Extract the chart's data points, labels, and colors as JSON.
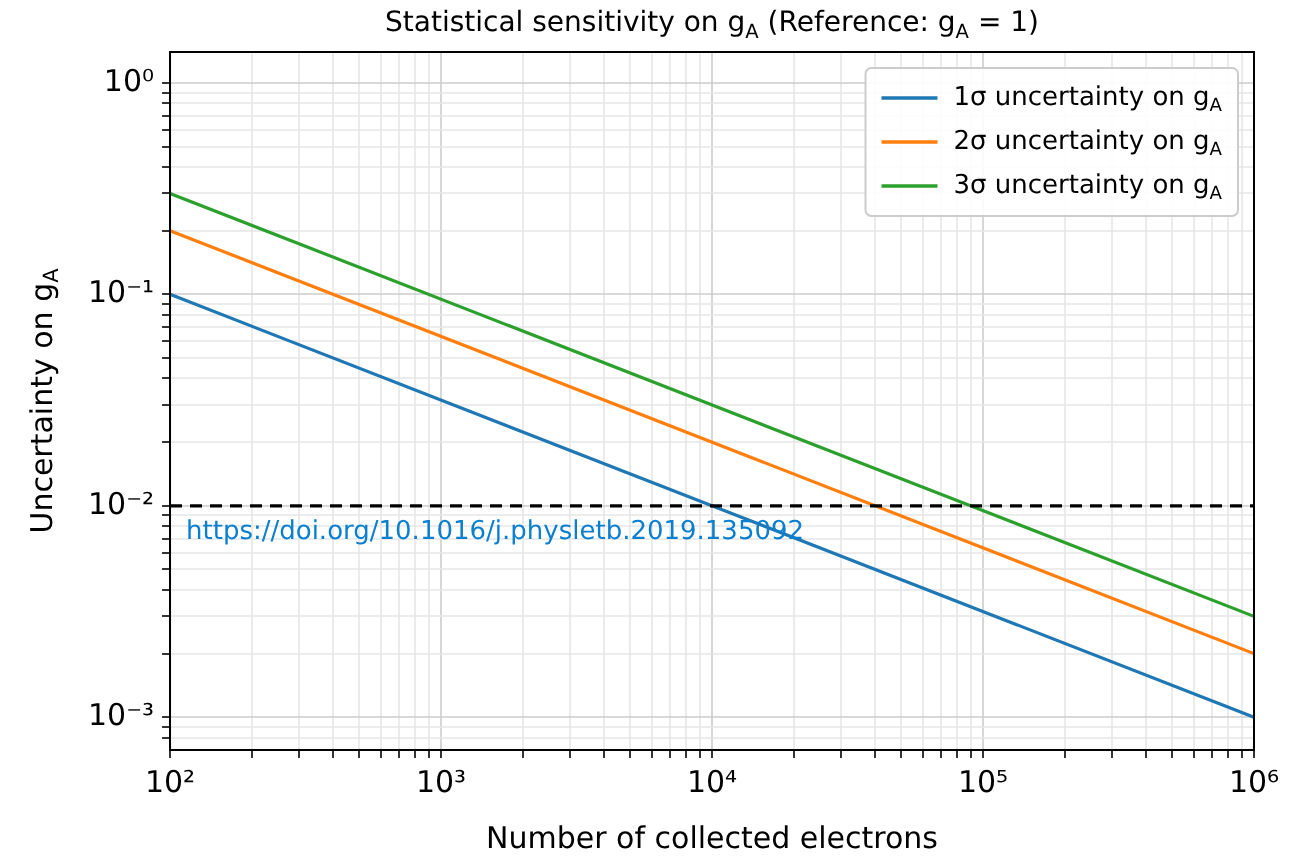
{
  "chart_data": {
    "type": "line",
    "title": "Statistical sensitivity on g$_{A}$ (Reference: g$_{A}$ = 1)",
    "xlabel": "Number of collected electrons",
    "ylabel": "Uncertainty on g$_{A}$",
    "log": "xy",
    "grid": true,
    "legend": "top right",
    "marker": "none",
    "line_style": "solid",
    "x": [
      100,
      1000000
    ],
    "series": [
      {
        "name": "1σ uncertainty on g$_{A}$",
        "color": "#1f77b4",
        "values": [
          0.1,
          0.001
        ]
      },
      {
        "name": "2σ uncertainty on g$_{A}$",
        "color": "#ff7f0e",
        "values": [
          0.2,
          0.002
        ]
      },
      {
        "name": "3σ uncertainty on g$_{A}$",
        "color": "#2ca02c",
        "values": [
          0.3,
          0.003
        ]
      }
    ],
    "xlim": [
      100,
      1000000
    ],
    "xticks": [
      {
        "value": 100,
        "label": "10²"
      },
      {
        "value": 200,
        "label": null
      },
      {
        "value": 300,
        "label": null
      },
      {
        "value": 400,
        "label": null
      },
      {
        "value": 500,
        "label": null
      },
      {
        "value": 600,
        "label": null
      },
      {
        "value": 700,
        "label": null
      },
      {
        "value": 800,
        "label": null
      },
      {
        "value": 900,
        "label": null
      },
      {
        "value": 1000,
        "label": "10³"
      },
      {
        "value": 2000,
        "label": null
      },
      {
        "value": 3000,
        "label": null
      },
      {
        "value": 4000,
        "label": null
      },
      {
        "value": 5000,
        "label": null
      },
      {
        "value": 6000,
        "label": null
      },
      {
        "value": 7000,
        "label": null
      },
      {
        "value": 8000,
        "label": null
      },
      {
        "value": 9000,
        "label": null
      },
      {
        "value": 10000,
        "label": "10⁴"
      },
      {
        "value": 20000,
        "label": null
      },
      {
        "value": 30000,
        "label": null
      },
      {
        "value": 40000,
        "label": null
      },
      {
        "value": 50000,
        "label": null
      },
      {
        "value": 60000,
        "label": null
      },
      {
        "value": 70000,
        "label": null
      },
      {
        "value": 80000,
        "label": null
      },
      {
        "value": 90000,
        "label": null
      },
      {
        "value": 100000,
        "label": "10⁵"
      },
      {
        "value": 200000,
        "label": null
      },
      {
        "value": 300000,
        "label": null
      },
      {
        "value": 400000,
        "label": null
      },
      {
        "value": 500000,
        "label": null
      },
      {
        "value": 600000,
        "label": null
      },
      {
        "value": 700000,
        "label": null
      },
      {
        "value": 800000,
        "label": null
      },
      {
        "value": 900000,
        "label": null
      },
      {
        "value": 1000000,
        "label": "10⁶"
      }
    ],
    "ylim": [
      0.0007,
      1.4
    ],
    "yticks": [
      {
        "value": 0.0008,
        "label": null
      },
      {
        "value": 0.0009,
        "label": null
      },
      {
        "value": 0.001,
        "label": "10⁻³"
      },
      {
        "value": 0.002,
        "label": null
      },
      {
        "value": 0.003,
        "label": null
      },
      {
        "value": 0.004,
        "label": null
      },
      {
        "value": 0.005,
        "label": null
      },
      {
        "value": 0.006,
        "label": null
      },
      {
        "value": 0.007,
        "label": null
      },
      {
        "value": 0.008,
        "label": null
      },
      {
        "value": 0.009,
        "label": null
      },
      {
        "value": 0.01,
        "label": "10⁻²"
      },
      {
        "value": 0.02,
        "label": null
      },
      {
        "value": 0.03,
        "label": null
      },
      {
        "value": 0.04,
        "label": null
      },
      {
        "value": 0.05,
        "label": null
      },
      {
        "value": 0.06,
        "label": null
      },
      {
        "value": 0.07,
        "label": null
      },
      {
        "value": 0.08,
        "label": null
      },
      {
        "value": 0.09,
        "label": null
      },
      {
        "value": 0.1,
        "label": "10⁻¹"
      },
      {
        "value": 0.2,
        "label": null
      },
      {
        "value": 0.3,
        "label": null
      },
      {
        "value": 0.4,
        "label": null
      },
      {
        "value": 0.5,
        "label": null
      },
      {
        "value": 0.6,
        "label": null
      },
      {
        "value": 0.7,
        "label": null
      },
      {
        "value": 0.8,
        "label": null
      },
      {
        "value": 0.9,
        "label": null
      },
      {
        "value": 1,
        "label": "10⁰"
      }
    ],
    "ref_lines": [
      {
        "axis": "y",
        "value": 0.01,
        "color": "#000000",
        "line_style": "dashed"
      }
    ],
    "annotations": [
      "https://doi.org/10.1016/j.physletb.2019.135092"
    ]
  }
}
